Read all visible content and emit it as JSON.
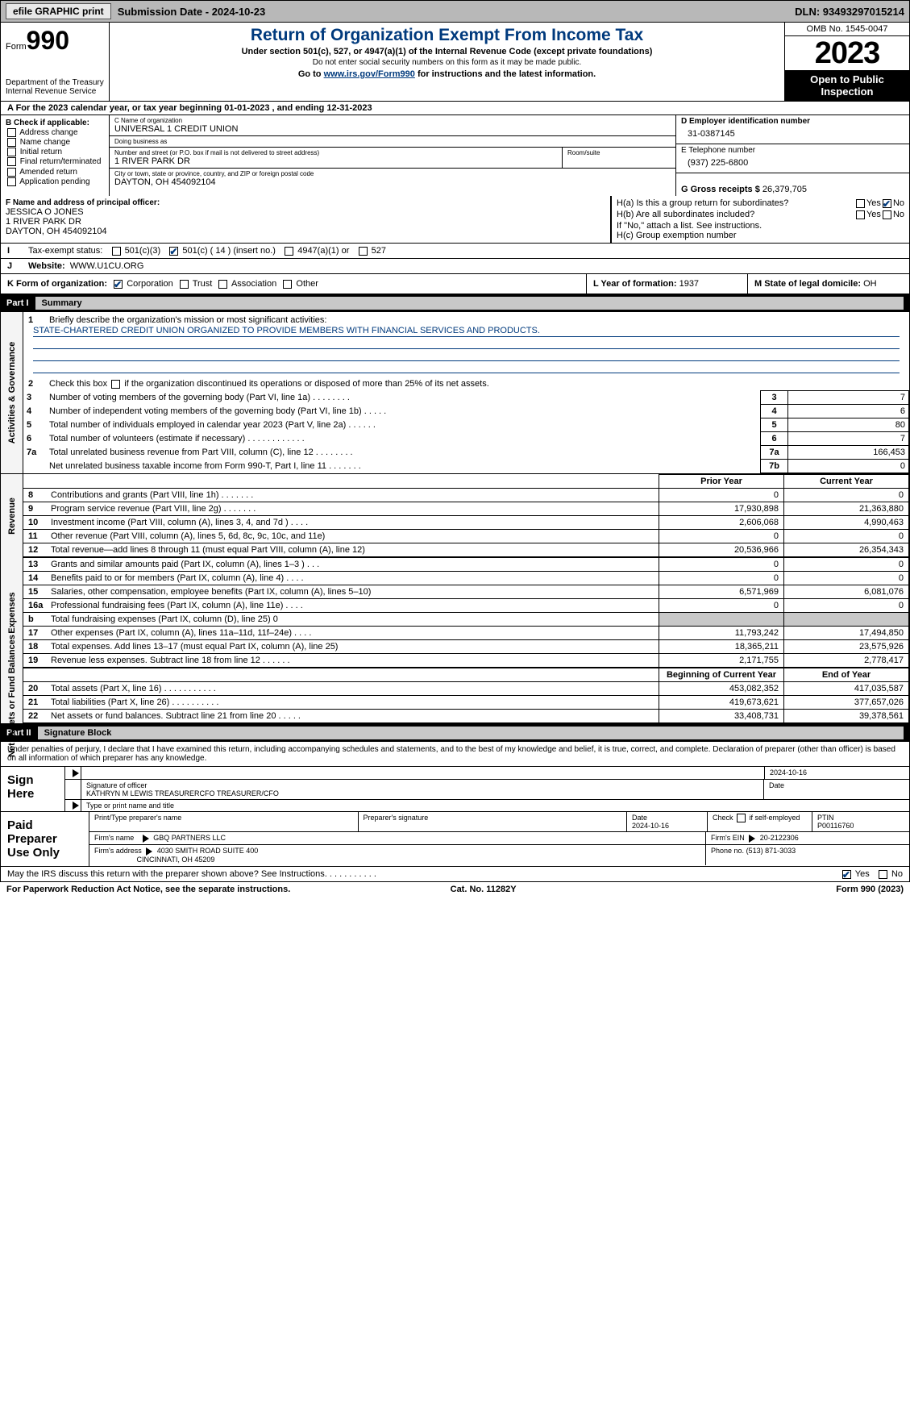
{
  "topbar": {
    "efile": "efile GRAPHIC print",
    "submission": "Submission Date - 2024-10-23",
    "dln": "DLN: 93493297015214"
  },
  "header": {
    "form_word": "Form",
    "form_num": "990",
    "dept": "Department of the Treasury",
    "irs": "Internal Revenue Service",
    "title": "Return of Organization Exempt From Income Tax",
    "sub": "Under section 501(c), 527, or 4947(a)(1) of the Internal Revenue Code (except private foundations)",
    "note": "Do not enter social security numbers on this form as it may be made public.",
    "link_pre": "Go to ",
    "link": "www.irs.gov/Form990",
    "link_post": " for instructions and the latest information.",
    "omb": "OMB No. 1545-0047",
    "year": "2023",
    "open": "Open to Public Inspection"
  },
  "rowA": "A For the 2023 calendar year, or tax year beginning 01-01-2023   , and ending 12-31-2023",
  "B": {
    "hdr": "B Check if applicable:",
    "opts": [
      "Address change",
      "Name change",
      "Initial return",
      "Final return/terminated",
      "Amended return",
      "Application pending"
    ]
  },
  "C": {
    "name_lbl": "C Name of organization",
    "name": "UNIVERSAL 1 CREDIT UNION",
    "dba_lbl": "Doing business as",
    "dba": "",
    "addr_lbl": "Number and street (or P.O. box if mail is not delivered to street address)",
    "addr": "1 RIVER PARK DR",
    "room_lbl": "Room/suite",
    "room": "",
    "city_lbl": "City or town, state or province, country, and ZIP or foreign postal code",
    "city": "DAYTON, OH  454092104"
  },
  "D": {
    "lbl": "D Employer identification number",
    "val": "31-0387145"
  },
  "E": {
    "lbl": "E Telephone number",
    "val": "(937) 225-6800"
  },
  "G": {
    "lbl": "G Gross receipts $",
    "val": "26,379,705"
  },
  "F": {
    "lbl": "F  Name and address of principal officer:",
    "name": "JESSICA O JONES",
    "addr": "1 RIVER PARK DR",
    "city": "DAYTON, OH  454092104"
  },
  "H": {
    "a": "H(a)  Is this a group return for subordinates?",
    "b": "H(b)  Are all subordinates included?",
    "b2": "If \"No,\" attach a list. See instructions.",
    "c": "H(c)  Group exemption number",
    "yes": "Yes",
    "no": "No"
  },
  "I": {
    "lbl": "Tax-exempt status:",
    "o1": "501(c)(3)",
    "o2": "501(c) ( 14 ) (insert no.)",
    "o3": "4947(a)(1) or",
    "o4": "527"
  },
  "J": {
    "lbl": "Website:",
    "val": "WWW.U1CU.ORG"
  },
  "K": {
    "lbl": "K Form of organization:",
    "o1": "Corporation",
    "o2": "Trust",
    "o3": "Association",
    "o4": "Other"
  },
  "L": {
    "lbl": "L Year of formation:",
    "val": "1937"
  },
  "M": {
    "lbl": "M State of legal domicile:",
    "val": "OH"
  },
  "parts": {
    "p1": "Part I",
    "p1t": "Summary",
    "p2": "Part II",
    "p2t": "Signature Block"
  },
  "vtabs": {
    "a": "Activities & Governance",
    "b": "Revenue",
    "c": "Expenses",
    "d": "Net Assets or Fund Balances"
  },
  "summary": {
    "l1": "Briefly describe the organization's mission or most significant activities:",
    "mission": "STATE-CHARTERED CREDIT UNION ORGANIZED TO PROVIDE MEMBERS WITH FINANCIAL SERVICES AND PRODUCTS.",
    "l2": "Check this box      if the organization discontinued its operations or disposed of more than 25% of its net assets.",
    "rows37": [
      {
        "n": "3",
        "t": "Number of voting members of the governing body (Part VI, line 1a)   .   .   .   .   .   .   .   .",
        "b": "3",
        "v": "7"
      },
      {
        "n": "4",
        "t": "Number of independent voting members of the governing body (Part VI, line 1b)   .   .   .   .   .",
        "b": "4",
        "v": "6"
      },
      {
        "n": "5",
        "t": "Total number of individuals employed in calendar year 2023 (Part V, line 2a)   .   .   .   .   .   .",
        "b": "5",
        "v": "80"
      },
      {
        "n": "6",
        "t": "Total number of volunteers (estimate if necessary)   .   .   .   .   .   .   .   .   .   .   .   .",
        "b": "6",
        "v": "7"
      },
      {
        "n": "7a",
        "t": "Total unrelated business revenue from Part VIII, column (C), line 12   .   .   .   .   .   .   .   .",
        "b": "7a",
        "v": "166,453"
      },
      {
        "n": "",
        "t": "Net unrelated business taxable income from Form 990-T, Part I, line 11   .   .   .   .   .   .   .",
        "b": "7b",
        "v": "0"
      }
    ],
    "py": "Prior Year",
    "cy": "Current Year",
    "rev": [
      {
        "n": "8",
        "t": "Contributions and grants (Part VIII, line 1h)   .   .   .   .   .   .   .",
        "p": "0",
        "c": "0"
      },
      {
        "n": "9",
        "t": "Program service revenue (Part VIII, line 2g)   .   .   .   .   .   .   .",
        "p": "17,930,898",
        "c": "21,363,880"
      },
      {
        "n": "10",
        "t": "Investment income (Part VIII, column (A), lines 3, 4, and 7d )   .   .   .   .",
        "p": "2,606,068",
        "c": "4,990,463"
      },
      {
        "n": "11",
        "t": "Other revenue (Part VIII, column (A), lines 5, 6d, 8c, 9c, 10c, and 11e)",
        "p": "0",
        "c": "0"
      },
      {
        "n": "12",
        "t": "Total revenue—add lines 8 through 11 (must equal Part VIII, column (A), line 12)",
        "p": "20,536,966",
        "c": "26,354,343"
      }
    ],
    "exp": [
      {
        "n": "13",
        "t": "Grants and similar amounts paid (Part IX, column (A), lines 1–3 )   .   .   .",
        "p": "0",
        "c": "0"
      },
      {
        "n": "14",
        "t": "Benefits paid to or for members (Part IX, column (A), line 4)   .   .   .   .",
        "p": "0",
        "c": "0"
      },
      {
        "n": "15",
        "t": "Salaries, other compensation, employee benefits (Part IX, column (A), lines 5–10)",
        "p": "6,571,969",
        "c": "6,081,076"
      },
      {
        "n": "16a",
        "t": "Professional fundraising fees (Part IX, column (A), line 11e)   .   .   .   .",
        "p": "0",
        "c": "0"
      },
      {
        "n": "b",
        "t": "Total fundraising expenses (Part IX, column (D), line 25) 0",
        "p": "GREY",
        "c": "GREY"
      },
      {
        "n": "17",
        "t": "Other expenses (Part IX, column (A), lines 11a–11d, 11f–24e)   .   .   .   .",
        "p": "11,793,242",
        "c": "17,494,850"
      },
      {
        "n": "18",
        "t": "Total expenses. Add lines 13–17 (must equal Part IX, column (A), line 25)",
        "p": "18,365,211",
        "c": "23,575,926"
      },
      {
        "n": "19",
        "t": "Revenue less expenses. Subtract line 18 from line 12   .   .   .   .   .   .",
        "p": "2,171,755",
        "c": "2,778,417"
      }
    ],
    "bcy": "Beginning of Current Year",
    "eoy": "End of Year",
    "net": [
      {
        "n": "20",
        "t": "Total assets (Part X, line 16)   .   .   .   .   .   .   .   .   .   .   .",
        "p": "453,082,352",
        "c": "417,035,587"
      },
      {
        "n": "21",
        "t": "Total liabilities (Part X, line 26)   .   .   .   .   .   .   .   .   .   .",
        "p": "419,673,621",
        "c": "377,657,026"
      },
      {
        "n": "22",
        "t": "Net assets or fund balances. Subtract line 21 from line 20   .   .   .   .   .",
        "p": "33,408,731",
        "c": "39,378,561"
      }
    ]
  },
  "sig": {
    "decl": "Under penalties of perjury, I declare that I have examined this return, including accompanying schedules and statements, and to the best of my knowledge and belief, it is true, correct, and complete. Declaration of preparer (other than officer) is based on all information of which preparer has any knowledge.",
    "sign_here": "Sign Here",
    "date1": "2024-10-16",
    "sig_officer_lbl": "Signature of officer",
    "officer": "KATHRYN M LEWIS TREASURERCFO  TREASURER/CFO",
    "type_lbl": "Type or print name and title",
    "date_lbl": "Date",
    "paid": "Paid Preparer Use Only",
    "p_name_lbl": "Print/Type preparer's name",
    "p_sig_lbl": "Preparer's signature",
    "p_date": "2024-10-16",
    "check_lbl": "Check         if self-employed",
    "ptin_lbl": "PTIN",
    "ptin": "P00116760",
    "firm_name_lbl": "Firm's name",
    "firm_name": "GBQ PARTNERS LLC",
    "firm_ein_lbl": "Firm's EIN",
    "firm_ein": "20-2122306",
    "firm_addr_lbl": "Firm's address",
    "firm_addr1": "4030 SMITH ROAD SUITE 400",
    "firm_addr2": "CINCINNATI, OH  45209",
    "phone_lbl": "Phone no.",
    "phone": "(513) 871-3033",
    "discuss": "May the IRS discuss this return with the preparer shown above? See Instructions.   .   .   .   .   .   .   .   .   .   .",
    "yes": "Yes",
    "no": "No"
  },
  "footer": {
    "pra": "For Paperwork Reduction Act Notice, see the separate instructions.",
    "cat": "Cat. No. 11282Y",
    "form": "Form 990 (2023)"
  }
}
